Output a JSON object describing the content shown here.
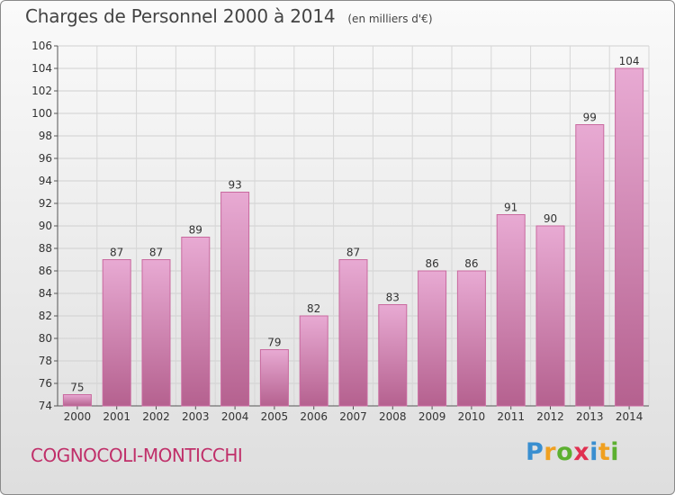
{
  "title": "Charges de Personnel 2000 à 2014",
  "unit_note": "(en milliers d'€)",
  "commune": "COGNOCOLI-MONTICCHI",
  "logo": {
    "letters": [
      "P",
      "r",
      "o",
      "x",
      "i",
      "t",
      "i"
    ],
    "colors": [
      "#3a8fd0",
      "#f0a020",
      "#5cb030",
      "#e03050",
      "#3a8fd0",
      "#f0a020",
      "#5cb030"
    ]
  },
  "colors": {
    "bar_light": "#e8aad3",
    "bar_dark": "#b5618f",
    "bar_edge": "#c9699f",
    "title": "#444444",
    "commune": "#c0306a"
  },
  "chart_data": {
    "type": "bar",
    "categories": [
      "2000",
      "2001",
      "2002",
      "2003",
      "2004",
      "2005",
      "2006",
      "2007",
      "2008",
      "2009",
      "2010",
      "2011",
      "2012",
      "2013",
      "2014"
    ],
    "values": [
      75,
      87,
      87,
      89,
      93,
      79,
      82,
      87,
      83,
      86,
      86,
      91,
      90,
      99,
      104
    ],
    "data_labels": [
      "75",
      "87",
      "87",
      "89",
      "93",
      "79",
      "82",
      "87",
      "83",
      "86",
      "86",
      "91",
      "90",
      "99",
      "104"
    ],
    "yticks": [
      74,
      76,
      78,
      80,
      82,
      84,
      86,
      88,
      90,
      92,
      94,
      96,
      98,
      100,
      102,
      104,
      106
    ],
    "ylim": [
      74,
      106
    ],
    "grid": true
  }
}
